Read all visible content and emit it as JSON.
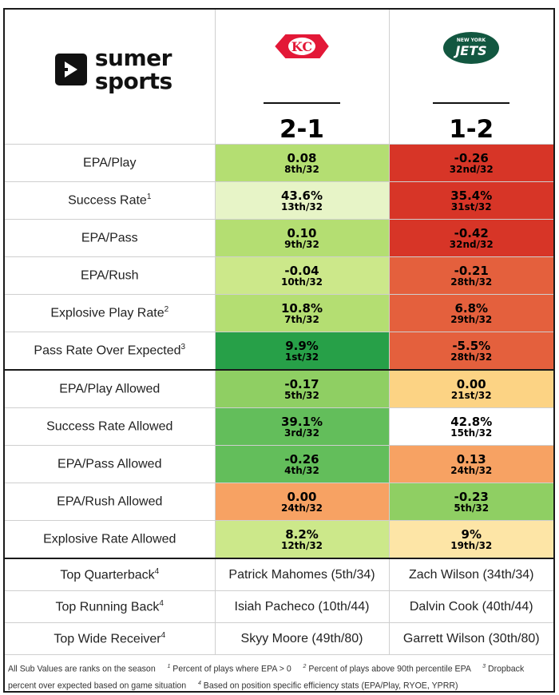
{
  "brand": {
    "line1": "sumer",
    "line2": "sports"
  },
  "teams": [
    {
      "name": "Kansas City Chiefs",
      "record": "2-1",
      "logo_icon": "chiefs-arrowhead-logo",
      "logo_color": "#E31837"
    },
    {
      "name": "New York Jets",
      "record": "1-2",
      "logo_icon": "jets-oval-logo",
      "logo_color": "#125740",
      "logo_text_top": "NEW YORK",
      "logo_text": "JETS"
    }
  ],
  "colors": {
    "dark_green": "#27A048",
    "green": "#63BE5B",
    "mid_green": "#8FCF63",
    "light_green": "#B4DE72",
    "lighter_green": "#CCE88A",
    "pale_green": "#E7F4C7",
    "white": "#FFFFFF",
    "pale_yellow": "#FDE5A6",
    "light_orange": "#FCD384",
    "orange": "#F7A263",
    "red_orange": "#E4603D",
    "red": "#D73527"
  },
  "offense": [
    {
      "label": "EPA/Play",
      "sup": "",
      "a": {
        "value": "0.08",
        "rank": "8th/32",
        "color": "#B4DE72"
      },
      "b": {
        "value": "-0.26",
        "rank": "32nd/32",
        "color": "#D73527"
      }
    },
    {
      "label": "Success Rate",
      "sup": "1",
      "a": {
        "value": "43.6%",
        "rank": "13th/32",
        "color": "#E7F4C7"
      },
      "b": {
        "value": "35.4%",
        "rank": "31st/32",
        "color": "#D73527"
      }
    },
    {
      "label": "EPA/Pass",
      "sup": "",
      "a": {
        "value": "0.10",
        "rank": "9th/32",
        "color": "#B4DE72"
      },
      "b": {
        "value": "-0.42",
        "rank": "32nd/32",
        "color": "#D73527"
      }
    },
    {
      "label": "EPA/Rush",
      "sup": "",
      "a": {
        "value": "-0.04",
        "rank": "10th/32",
        "color": "#CCE88A"
      },
      "b": {
        "value": "-0.21",
        "rank": "28th/32",
        "color": "#E4603D"
      }
    },
    {
      "label": "Explosive Play Rate",
      "sup": "2",
      "a": {
        "value": "10.8%",
        "rank": "7th/32",
        "color": "#B4DE72"
      },
      "b": {
        "value": "6.8%",
        "rank": "29th/32",
        "color": "#E4603D"
      }
    },
    {
      "label": "Pass Rate Over Expected",
      "sup": "3",
      "a": {
        "value": "9.9%",
        "rank": "1st/32",
        "color": "#27A048"
      },
      "b": {
        "value": "-5.5%",
        "rank": "28th/32",
        "color": "#E4603D"
      }
    }
  ],
  "defense": [
    {
      "label": "EPA/Play Allowed",
      "sup": "",
      "a": {
        "value": "-0.17",
        "rank": "5th/32",
        "color": "#8FCF63"
      },
      "b": {
        "value": "0.00",
        "rank": "21st/32",
        "color": "#FCD384"
      }
    },
    {
      "label": "Success Rate Allowed",
      "sup": "",
      "a": {
        "value": "39.1%",
        "rank": "3rd/32",
        "color": "#63BE5B"
      },
      "b": {
        "value": "42.8%",
        "rank": "15th/32",
        "color": "#FFFFFF"
      }
    },
    {
      "label": "EPA/Pass Allowed",
      "sup": "",
      "a": {
        "value": "-0.26",
        "rank": "4th/32",
        "color": "#63BE5B"
      },
      "b": {
        "value": "0.13",
        "rank": "24th/32",
        "color": "#F7A263"
      }
    },
    {
      "label": "EPA/Rush Allowed",
      "sup": "",
      "a": {
        "value": "0.00",
        "rank": "24th/32",
        "color": "#F7A263"
      },
      "b": {
        "value": "-0.23",
        "rank": "5th/32",
        "color": "#8FCF63"
      }
    },
    {
      "label": "Explosive Rate Allowed",
      "sup": "",
      "a": {
        "value": "8.2%",
        "rank": "12th/32",
        "color": "#CCE88A"
      },
      "b": {
        "value": "9%",
        "rank": "19th/32",
        "color": "#FDE5A6"
      }
    }
  ],
  "players": [
    {
      "label": "Top Quarterback",
      "sup": "4",
      "a": "Patrick Mahomes (5th/34)",
      "b": "Zach Wilson (34th/34)"
    },
    {
      "label": "Top Running Back",
      "sup": "4",
      "a": "Isiah Pacheco (10th/44)",
      "b": "Dalvin Cook (40th/44)"
    },
    {
      "label": "Top Wide Receiver",
      "sup": "4",
      "a": "Skyy Moore (49th/80)",
      "b": "Garrett Wilson (30th/80)"
    }
  ],
  "footnotes": {
    "intro": "All Sub Values are ranks on the season",
    "n1_mark": "1",
    "n1": "Percent of plays where EPA > 0",
    "n2_mark": "2",
    "n2": "Percent of plays above 90th percentile EPA",
    "n3_mark": "3",
    "n3": "Dropback percent over expected based on game situation",
    "n4_mark": "4",
    "n4": "Based on position specific efficiency stats (EPA/Play, RYOE, YPRR)"
  }
}
